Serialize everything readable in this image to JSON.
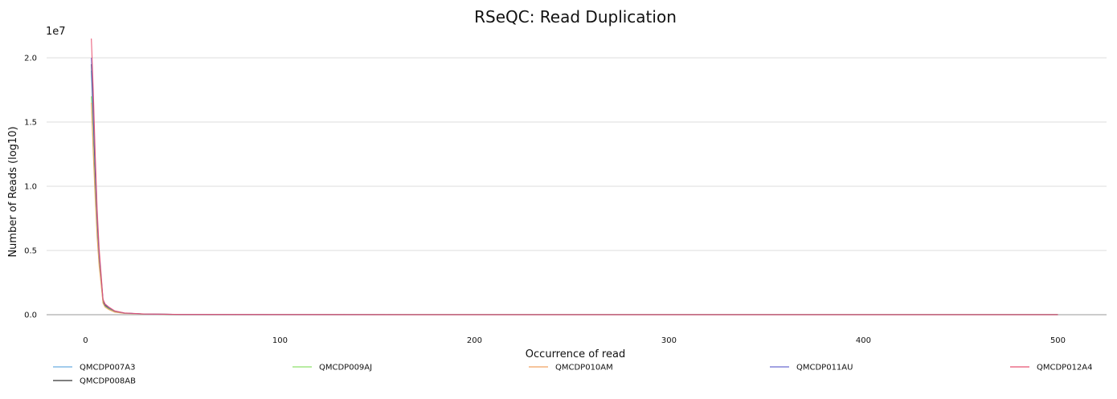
{
  "chart_data": {
    "type": "line",
    "title": "RSeQC: Read Duplication",
    "xlabel": "Occurrence of read",
    "ylabel": "Number of Reads (log10)",
    "y_scale_label": "1e7",
    "xlim": [
      -20,
      525
    ],
    "ylim": [
      0,
      2.2
    ],
    "x_ticks": [
      0,
      100,
      200,
      300,
      400,
      500
    ],
    "x_tick_labels": [
      "0",
      "100",
      "200",
      "300",
      "400",
      "500"
    ],
    "y_ticks": [
      0,
      0.5,
      1.0,
      1.5,
      2.0
    ],
    "y_tick_labels": [
      "0.0",
      "0.5",
      "1.0",
      "1.5",
      "2.0"
    ],
    "y_units": "x 1e7",
    "grid": "horizontal",
    "legend_position": "bottom",
    "series": [
      {
        "name": "QMCDP007A3",
        "color": "#6aaee0",
        "x": [
          3,
          4,
          5,
          6,
          7,
          8,
          9,
          10,
          12,
          15,
          20,
          30,
          50,
          100,
          200,
          300,
          400,
          500
        ],
        "y": [
          1.9,
          1.5,
          1.05,
          0.7,
          0.45,
          0.28,
          0.1,
          0.07,
          0.05,
          0.025,
          0.012,
          0.005,
          0.002,
          0.001,
          0.0005,
          0.0003,
          0.0002,
          0.0001
        ]
      },
      {
        "name": "QMCDP008AB",
        "color": "#333333",
        "x": [
          3,
          4,
          5,
          6,
          7,
          8,
          9,
          10,
          12,
          15,
          20,
          30,
          50,
          100,
          200,
          300,
          400,
          500
        ],
        "y": [
          1.95,
          1.55,
          1.1,
          0.72,
          0.46,
          0.29,
          0.11,
          0.075,
          0.05,
          0.025,
          0.012,
          0.005,
          0.002,
          0.001,
          0.0005,
          0.0003,
          0.0002,
          0.0001
        ]
      },
      {
        "name": "QMCDP009AJ",
        "color": "#8ee06a",
        "x": [
          3,
          4,
          5,
          6,
          7,
          8,
          9,
          10,
          12,
          15,
          20,
          30,
          50,
          100,
          200,
          300,
          400,
          500
        ],
        "y": [
          1.7,
          1.3,
          0.95,
          0.62,
          0.4,
          0.25,
          0.09,
          0.065,
          0.045,
          0.022,
          0.011,
          0.004,
          0.002,
          0.001,
          0.0005,
          0.0003,
          0.0002,
          0.0001
        ]
      },
      {
        "name": "QMCDP010AM",
        "color": "#f0a060",
        "x": [
          3,
          4,
          5,
          6,
          7,
          8,
          9,
          10,
          12,
          15,
          20,
          30,
          50,
          100,
          200,
          300,
          400,
          500
        ],
        "y": [
          1.65,
          1.25,
          0.9,
          0.6,
          0.38,
          0.24,
          0.09,
          0.06,
          0.04,
          0.02,
          0.01,
          0.004,
          0.002,
          0.001,
          0.0005,
          0.0003,
          0.0002,
          0.0001
        ]
      },
      {
        "name": "QMCDP011AU",
        "color": "#6a6ad0",
        "x": [
          3,
          4,
          5,
          6,
          7,
          8,
          9,
          10,
          12,
          15,
          20,
          30,
          50,
          100,
          200,
          300,
          400,
          500
        ],
        "y": [
          2.0,
          1.6,
          1.15,
          0.75,
          0.48,
          0.3,
          0.12,
          0.08,
          0.055,
          0.028,
          0.013,
          0.005,
          0.002,
          0.001,
          0.0005,
          0.0003,
          0.0002,
          0.0001
        ]
      },
      {
        "name": "QMCDP012A4",
        "color": "#e85070",
        "x": [
          3,
          4,
          5,
          6,
          7,
          8,
          9,
          10,
          12,
          15,
          20,
          30,
          50,
          100,
          200,
          300,
          400,
          500
        ],
        "y": [
          2.15,
          1.75,
          1.25,
          0.82,
          0.52,
          0.32,
          0.12,
          0.085,
          0.06,
          0.03,
          0.014,
          0.006,
          0.002,
          0.001,
          0.0005,
          0.0003,
          0.0002,
          0.0001
        ]
      }
    ]
  }
}
